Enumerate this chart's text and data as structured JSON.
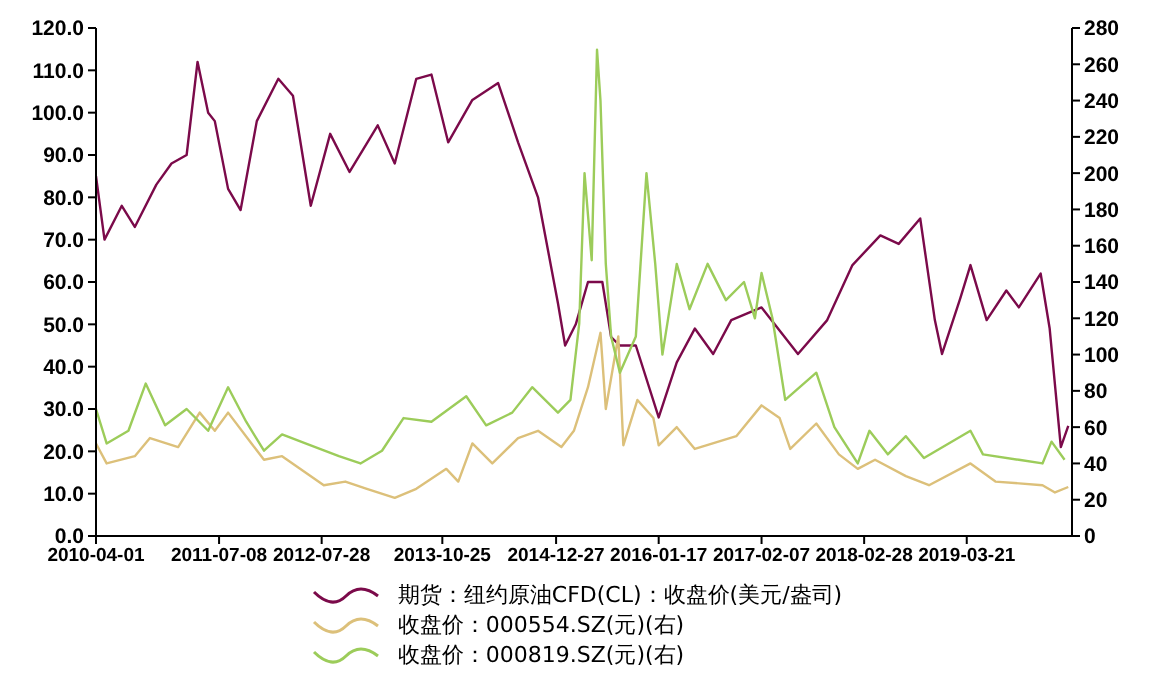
{
  "chart_data": {
    "type": "line",
    "xlim": [
      "2010-04-01",
      "2020-04-20"
    ],
    "xticks": [
      "2010-04-01",
      "2011-07-08",
      "2012-07-28",
      "2013-10-25",
      "2014-12-27",
      "2016-01-17",
      "2017-02-07",
      "2018-02-28",
      "2019-03-21"
    ],
    "ylim": [
      0,
      120
    ],
    "yticks": [
      {
        "value": 0,
        "label": "0.0"
      },
      {
        "value": 10,
        "label": "10.0"
      },
      {
        "value": 20,
        "label": "20.0"
      },
      {
        "value": 30,
        "label": "30.0"
      },
      {
        "value": 40,
        "label": "40.0"
      },
      {
        "value": 50,
        "label": "50.0"
      },
      {
        "value": 60,
        "label": "60.0"
      },
      {
        "value": 70,
        "label": "70.0"
      },
      {
        "value": 80,
        "label": "80.0"
      },
      {
        "value": 90,
        "label": "90.0"
      },
      {
        "value": 100,
        "label": "100.0"
      },
      {
        "value": 110,
        "label": "110.0"
      },
      {
        "value": 120,
        "label": "120.0"
      }
    ],
    "y2lim": [
      0,
      280
    ],
    "y2ticks": [
      0,
      20,
      40,
      60,
      80,
      100,
      120,
      140,
      160,
      180,
      200,
      220,
      240,
      260,
      280
    ],
    "legend": "bottom",
    "marker": "none",
    "line_style": "solid",
    "series": [
      {
        "name": "期货：纽约原油CFD(CL)：收盘价(美元/盎司)",
        "color": "#7b0a4a",
        "x": [
          "2010-04-01",
          "2010-05-03",
          "2010-07-07",
          "2010-08-25",
          "2010-11-14",
          "2011-01-10",
          "2011-03-08",
          "2011-04-18",
          "2011-05-28",
          "2011-06-22",
          "2011-08-11",
          "2011-09-27",
          "2011-11-27",
          "2012-02-16",
          "2012-04-11",
          "2012-06-17",
          "2012-08-29",
          "2012-11-10",
          "2013-02-24",
          "2013-04-29",
          "2013-07-19",
          "2013-09-14",
          "2013-11-16",
          "2014-02-15",
          "2014-05-23",
          "2014-08-06",
          "2014-10-20",
          "2015-01-03",
          "2015-01-30",
          "2015-03-11",
          "2015-04-26",
          "2015-06-19",
          "2015-07-22",
          "2015-08-24",
          "2015-10-23",
          "2016-01-17",
          "2016-03-25",
          "2016-06-01",
          "2016-08-09",
          "2016-10-16",
          "2017-02-07",
          "2017-06-24",
          "2017-10-12",
          "2018-01-15",
          "2018-04-30",
          "2018-07-08",
          "2018-09-27",
          "2018-11-21",
          "2018-12-18",
          "2019-02-24",
          "2019-04-04",
          "2019-06-04",
          "2019-08-17",
          "2019-10-03",
          "2019-12-24",
          "2020-01-27",
          "2020-03-09",
          "2020-04-06"
        ],
        "values": [
          85,
          70,
          78,
          73,
          83,
          88,
          90,
          112,
          100,
          98,
          82,
          77,
          98,
          108,
          104,
          78,
          95,
          86,
          97,
          88,
          108,
          109,
          93,
          103,
          107,
          93,
          80,
          55,
          45,
          50,
          60,
          60,
          47,
          45,
          45,
          28,
          41,
          49,
          43,
          51,
          54,
          43,
          51,
          64,
          71,
          69,
          75,
          51,
          43,
          56,
          64,
          51,
          58,
          54,
          62,
          49,
          21,
          26
        ]
      },
      {
        "name": "收盘价：000554.SZ(元)(右)",
        "color": "#dcc07a",
        "axis": "y2",
        "x": [
          "2010-04-01",
          "2010-05-11",
          "2010-08-25",
          "2010-10-21",
          "2011-02-04",
          "2011-04-26",
          "2011-06-22",
          "2011-08-11",
          "2011-11-07",
          "2011-12-24",
          "2012-03-01",
          "2012-05-28",
          "2012-08-05",
          "2012-10-25",
          "2013-01-14",
          "2013-04-29",
          "2013-07-19",
          "2013-11-09",
          "2013-12-24",
          "2014-02-15",
          "2014-05-01",
          "2014-08-06",
          "2014-10-20",
          "2015-01-16",
          "2015-03-04",
          "2015-04-26",
          "2015-06-12",
          "2015-07-02",
          "2015-08-18",
          "2015-09-06",
          "2015-10-29",
          "2015-12-28",
          "2016-01-17",
          "2016-03-25",
          "2016-06-01",
          "2016-11-04",
          "2017-02-07",
          "2017-04-16",
          "2017-05-26",
          "2017-09-01",
          "2017-11-25",
          "2018-02-04",
          "2018-04-10",
          "2018-08-04",
          "2018-10-30",
          "2019-04-04",
          "2019-07-07",
          "2019-12-31",
          "2020-02-16",
          "2020-04-06"
        ],
        "values": [
          51,
          40,
          44,
          54,
          49,
          68,
          58,
          68,
          51,
          42,
          44,
          35,
          28,
          30,
          26,
          21,
          26,
          37,
          30,
          51,
          40,
          54,
          58,
          49,
          58,
          82,
          112,
          70,
          110,
          50,
          75,
          65,
          50,
          60,
          48,
          55,
          72,
          65,
          48,
          62,
          45,
          37,
          42,
          33,
          28,
          40,
          30,
          28,
          24,
          27
        ]
      },
      {
        "name": "收盘价：000819.SZ(元)(右)",
        "color": "#9ccc5a",
        "axis": "y2",
        "x": [
          "2010-04-01",
          "2010-05-11",
          "2010-08-01",
          "2010-10-05",
          "2010-12-17",
          "2011-03-08",
          "2011-05-28",
          "2011-08-11",
          "2011-10-18",
          "2011-12-24",
          "2012-03-01",
          "2012-05-28",
          "2012-10-01",
          "2012-12-21",
          "2013-03-12",
          "2013-06-01",
          "2013-09-14",
          "2014-01-23",
          "2014-04-08",
          "2014-07-15",
          "2014-09-28",
          "2015-01-03",
          "2015-02-19",
          "2015-03-24",
          "2015-04-13",
          "2015-05-10",
          "2015-05-30",
          "2015-06-12",
          "2015-07-02",
          "2015-07-22",
          "2015-08-24",
          "2015-10-23",
          "2015-12-02",
          "2016-01-04",
          "2016-01-31",
          "2016-03-25",
          "2016-05-12",
          "2016-07-19",
          "2016-09-26",
          "2016-12-03",
          "2017-01-13",
          "2017-02-07",
          "2017-03-20",
          "2017-05-07",
          "2017-09-01",
          "2017-11-08",
          "2018-02-04",
          "2018-03-20",
          "2018-05-28",
          "2018-08-04",
          "2018-10-11",
          "2019-04-04",
          "2019-05-21",
          "2019-10-03",
          "2019-12-31",
          "2020-02-03",
          "2020-03-23"
        ],
        "values": [
          70,
          51,
          58,
          84,
          61,
          70,
          58,
          82,
          63,
          47,
          56,
          51,
          44,
          40,
          47,
          65,
          63,
          77,
          61,
          68,
          82,
          68,
          75,
          117,
          200,
          152,
          268,
          240,
          150,
          110,
          90,
          110,
          200,
          150,
          100,
          150,
          125,
          150,
          130,
          140,
          120,
          145,
          120,
          75,
          90,
          60,
          40,
          58,
          45,
          55,
          43,
          58,
          45,
          42,
          40,
          52,
          42
        ]
      }
    ]
  }
}
